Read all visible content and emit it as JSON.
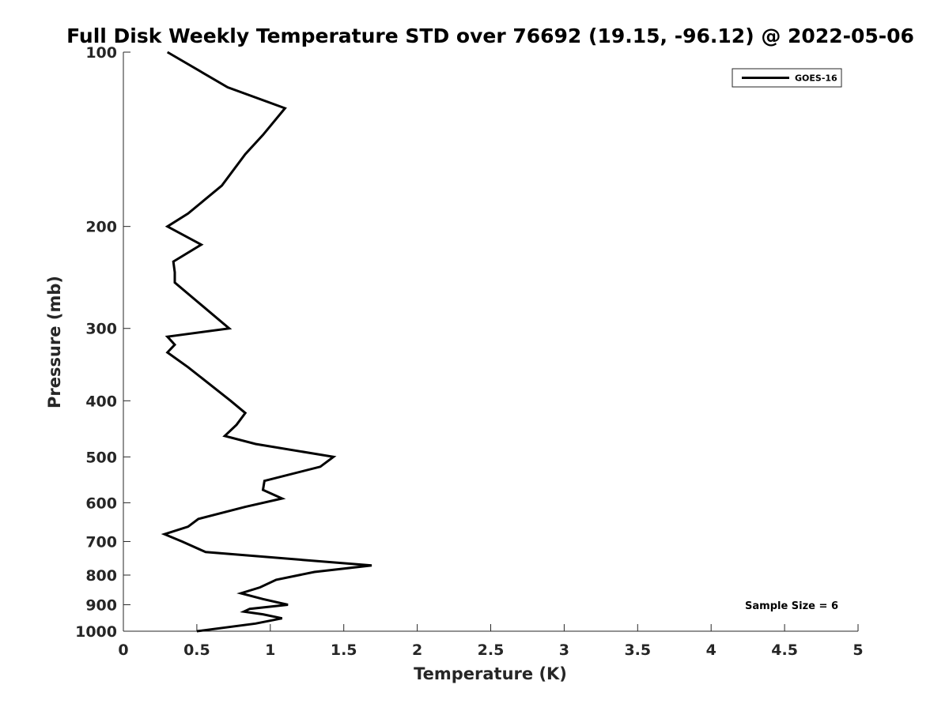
{
  "chart_data": {
    "type": "line",
    "title": "Full Disk Weekly Temperature STD over 76692 (19.15, -96.12) @ 2022-05-06",
    "xlabel": "Temperature (K)",
    "ylabel": "Pressure (mb)",
    "xlim": [
      0,
      5
    ],
    "ylim": [
      100,
      1000
    ],
    "y_scale": "log",
    "y_reversed": true,
    "xticks": [
      0,
      0.5,
      1,
      1.5,
      2,
      2.5,
      3,
      3.5,
      4,
      4.5,
      5
    ],
    "xtick_labels": [
      "0",
      "0.5",
      "1",
      "1.5",
      "2",
      "2.5",
      "3",
      "3.5",
      "4",
      "4.5",
      "5"
    ],
    "yticks": [
      100,
      200,
      300,
      400,
      500,
      600,
      700,
      800,
      900,
      1000
    ],
    "ytick_labels": [
      "100",
      "200",
      "300",
      "400",
      "500",
      "600",
      "700",
      "800",
      "900",
      "1000"
    ],
    "grid": false,
    "legend_position": "top-right",
    "series": [
      {
        "name": "GOES-16",
        "color": "#000000",
        "points": [
          [
            0.3,
            100
          ],
          [
            0.71,
            115
          ],
          [
            1.1,
            125
          ],
          [
            0.95,
            139
          ],
          [
            0.83,
            150
          ],
          [
            0.67,
            170
          ],
          [
            0.44,
            190
          ],
          [
            0.3,
            200
          ],
          [
            0.53,
            215
          ],
          [
            0.34,
            230
          ],
          [
            0.35,
            240
          ],
          [
            0.35,
            250
          ],
          [
            0.72,
            300
          ],
          [
            0.3,
            310
          ],
          [
            0.35,
            320
          ],
          [
            0.3,
            330
          ],
          [
            0.44,
            350
          ],
          [
            0.73,
            400
          ],
          [
            0.83,
            420
          ],
          [
            0.77,
            440
          ],
          [
            0.69,
            460
          ],
          [
            0.9,
            475
          ],
          [
            1.43,
            500
          ],
          [
            1.34,
            520
          ],
          [
            0.96,
            550
          ],
          [
            0.95,
            570
          ],
          [
            1.08,
            590
          ],
          [
            0.83,
            610
          ],
          [
            0.51,
            640
          ],
          [
            0.44,
            660
          ],
          [
            0.28,
            680
          ],
          [
            0.4,
            700
          ],
          [
            0.56,
            730
          ],
          [
            1.69,
            770
          ],
          [
            1.3,
            790
          ],
          [
            1.04,
            815
          ],
          [
            0.93,
            840
          ],
          [
            0.8,
            860
          ],
          [
            0.95,
            880
          ],
          [
            1.12,
            900
          ],
          [
            0.86,
            915
          ],
          [
            0.82,
            925
          ],
          [
            0.95,
            935
          ],
          [
            1.08,
            950
          ],
          [
            0.9,
            970
          ],
          [
            0.5,
            1000
          ]
        ]
      }
    ],
    "annotations": [
      "Sample Size = 6"
    ]
  }
}
